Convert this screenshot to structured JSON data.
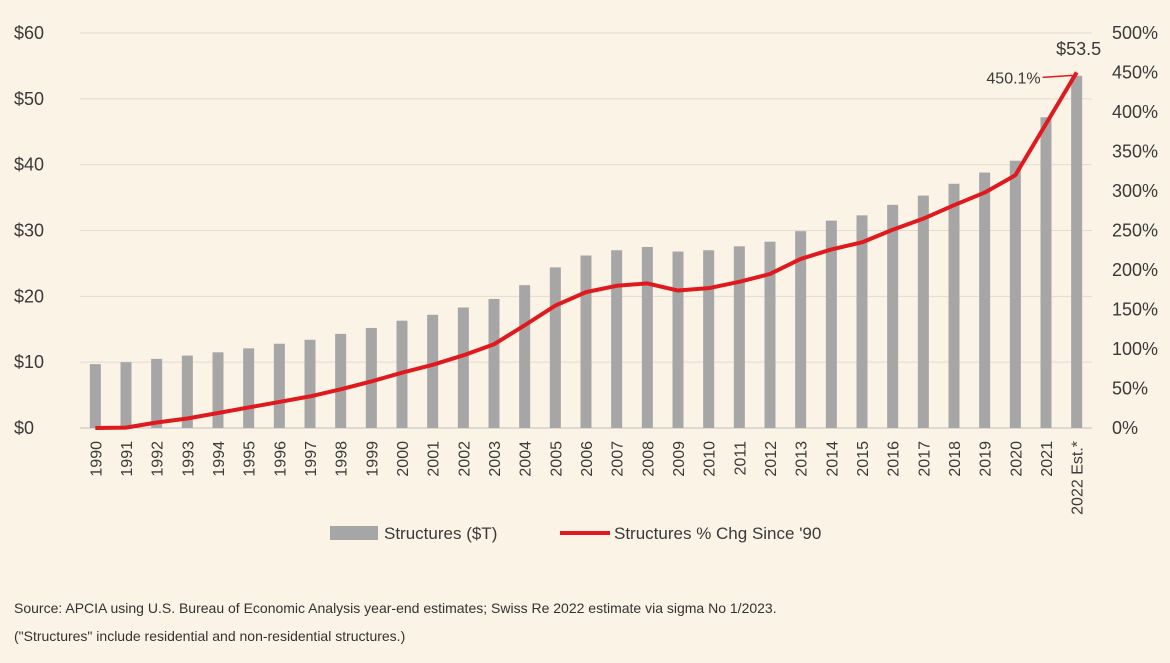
{
  "chart_data": {
    "type": "bar+line",
    "categories": [
      "1990",
      "1991",
      "1992",
      "1993",
      "1994",
      "1995",
      "1996",
      "1997",
      "1998",
      "1999",
      "2000",
      "2001",
      "2002",
      "2003",
      "2004",
      "2005",
      "2006",
      "2007",
      "2008",
      "2009",
      "2010",
      "2011",
      "2012",
      "2013",
      "2014",
      "2015",
      "2016",
      "2017",
      "2018",
      "2019",
      "2020",
      "2021",
      "2022 Est.*"
    ],
    "series": [
      {
        "name": "Structures ($T)",
        "type": "bar",
        "axis": "left",
        "color": "#a6a6a6",
        "values": [
          9.7,
          10.0,
          10.5,
          11.0,
          11.5,
          12.1,
          12.8,
          13.4,
          14.3,
          15.2,
          16.3,
          17.2,
          18.3,
          19.6,
          21.7,
          24.4,
          26.2,
          27.0,
          27.5,
          26.8,
          27.0,
          27.6,
          28.3,
          29.9,
          31.5,
          32.3,
          33.9,
          35.3,
          37.1,
          38.8,
          40.6,
          47.2,
          53.5
        ]
      },
      {
        "name": "Structures % Chg Since '90",
        "type": "line",
        "axis": "right",
        "color": "#e0191f",
        "values": [
          0,
          0.5,
          7,
          12,
          19,
          26,
          33,
          40,
          49,
          59,
          70,
          80,
          92,
          106,
          130,
          155,
          172,
          180,
          183,
          174,
          177,
          185,
          195,
          214,
          226,
          235,
          251,
          265,
          282,
          298,
          320,
          385,
          450.1
        ]
      }
    ],
    "y_left": {
      "ticks": [
        "$0",
        "$10",
        "$20",
        "$30",
        "$40",
        "$50",
        "$60"
      ],
      "range": [
        0,
        60
      ]
    },
    "y_right": {
      "ticks": [
        "0%",
        "50%",
        "100%",
        "150%",
        "200%",
        "250%",
        "300%",
        "350%",
        "400%",
        "450%",
        "500%"
      ],
      "range": [
        0,
        500
      ]
    },
    "annotations": {
      "bar_last": "$53.5",
      "line_last": "450.1%"
    },
    "grid": true,
    "legend_position": "bottom"
  },
  "source_line_1": "Source: APCIA using U.S. Bureau of Economic Analysis year-end estimates; Swiss Re 2022 estimate via sigma No 1/2023.",
  "source_line_2": "(\"Structures\" include residential and non-residential structures.)"
}
